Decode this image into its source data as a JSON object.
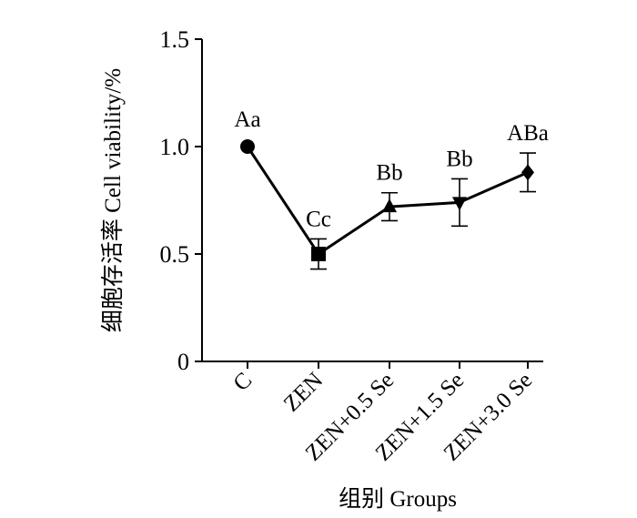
{
  "chart_data": {
    "type": "line",
    "title": "",
    "xlabel": "组别 Groups",
    "ylabel": "细胞存活率  Cell viability/%",
    "ylim": [
      0,
      1.5
    ],
    "yticks": [
      0,
      0.5,
      1.0,
      1.5
    ],
    "ytick_labels": [
      "0",
      "0.5",
      "1.0",
      "1.5"
    ],
    "grid": false,
    "legend": "none",
    "categories": [
      "C",
      "ZEN",
      "ZEN+0.5 Se",
      "ZEN+1.5 Se",
      "ZEN+3.0 Se"
    ],
    "series": [
      {
        "values": [
          1.0,
          0.5,
          0.72,
          0.74,
          0.88
        ],
        "errors": [
          0,
          0.07,
          0.065,
          0.11,
          0.09
        ],
        "markers": [
          "circle",
          "square",
          "triangle-up",
          "triangle-down",
          "diamond"
        ],
        "annotations": [
          "Aa",
          "Cc",
          "Bb",
          "Bb",
          "ABa"
        ],
        "color": "#000000"
      }
    ]
  }
}
